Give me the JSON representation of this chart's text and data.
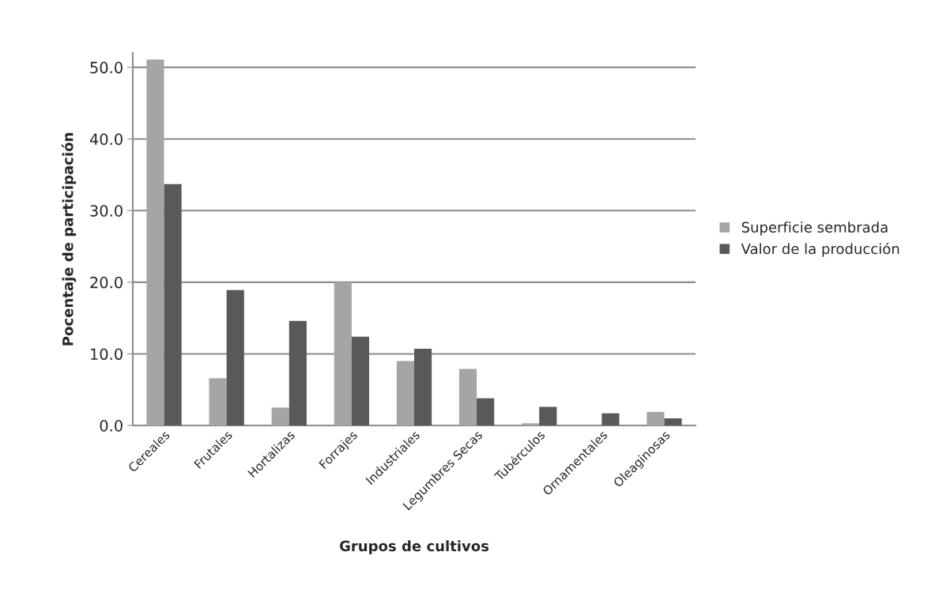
{
  "chart_data": {
    "type": "bar",
    "xlabel": "Grupos de cultivos",
    "ylabel": "Pocentaje de participación",
    "categories": [
      "Cereales",
      "Frutales",
      "Hortalizas",
      "Forrajes",
      "Industriales",
      "Legumbres Secas",
      "Tubérculos",
      "Ornamentales",
      "Oleaginosas"
    ],
    "series": [
      {
        "name": "Superficie sembrada",
        "color": "#a5a5a5",
        "values": [
          51.1,
          6.6,
          2.5,
          20.0,
          9.0,
          7.9,
          0.3,
          null,
          1.9
        ]
      },
      {
        "name": "Valor de la producción",
        "color": "#595959",
        "values": [
          33.7,
          18.9,
          14.6,
          12.4,
          10.7,
          3.8,
          2.6,
          1.7,
          1.0
        ]
      }
    ],
    "ylim": [
      0,
      52
    ],
    "yticks": [
      {
        "value": 0,
        "label": "0.0"
      },
      {
        "value": 10,
        "label": "10.0"
      },
      {
        "value": 20,
        "label": "20.0"
      },
      {
        "value": 30,
        "label": "30.0"
      },
      {
        "value": 40,
        "label": "40.0"
      },
      {
        "value": 50,
        "label": "50.0"
      }
    ],
    "grid": "y",
    "legend": "right"
  }
}
